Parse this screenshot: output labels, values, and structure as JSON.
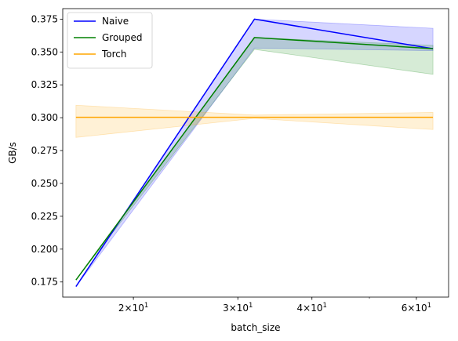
{
  "chart_data": {
    "type": "line",
    "xlabel": "batch_size",
    "ylabel": "GB/s",
    "xscale": "log",
    "xlim": [
      15.2,
      68
    ],
    "ylim": [
      0.1635,
      0.383
    ],
    "x": [
      16,
      32,
      64
    ],
    "xticks": [
      {
        "value": 20,
        "mantissa": "2",
        "base": "10",
        "exp": "1"
      },
      {
        "value": 30,
        "mantissa": "3",
        "base": "10",
        "exp": "1"
      },
      {
        "value": 40,
        "mantissa": "4",
        "base": "10",
        "exp": "1"
      },
      {
        "value": 60,
        "mantissa": "6",
        "base": "10",
        "exp": "1"
      }
    ],
    "yticks": [
      0.175,
      0.2,
      0.225,
      0.25,
      0.275,
      0.3,
      0.325,
      0.35,
      0.375
    ],
    "ytick_labels": [
      "0.175",
      "0.200",
      "0.225",
      "0.250",
      "0.275",
      "0.300",
      "0.325",
      "0.350",
      "0.375"
    ],
    "legend_position": "top-left",
    "grid": false,
    "series": [
      {
        "name": "Naive",
        "color": "#0000ff",
        "fill": "#0000ff",
        "fill_opacity": 0.16,
        "values": [
          0.1715,
          0.375,
          0.3525
        ],
        "upper": [
          0.1715,
          0.375,
          0.368
        ],
        "lower": [
          0.1715,
          0.353,
          0.351
        ]
      },
      {
        "name": "Grouped",
        "color": "#008000",
        "fill": "#008000",
        "fill_opacity": 0.16,
        "values": [
          0.1765,
          0.361,
          0.3525
        ],
        "upper": [
          0.1765,
          0.361,
          0.355
        ],
        "lower": [
          0.1765,
          0.352,
          0.333
        ]
      },
      {
        "name": "Torch",
        "color": "#ffa500",
        "fill": "#ffa500",
        "fill_opacity": 0.16,
        "values": [
          0.3003,
          0.3003,
          0.3003
        ],
        "upper": [
          0.3095,
          0.302,
          0.304
        ],
        "lower": [
          0.285,
          0.2995,
          0.291
        ]
      }
    ]
  }
}
